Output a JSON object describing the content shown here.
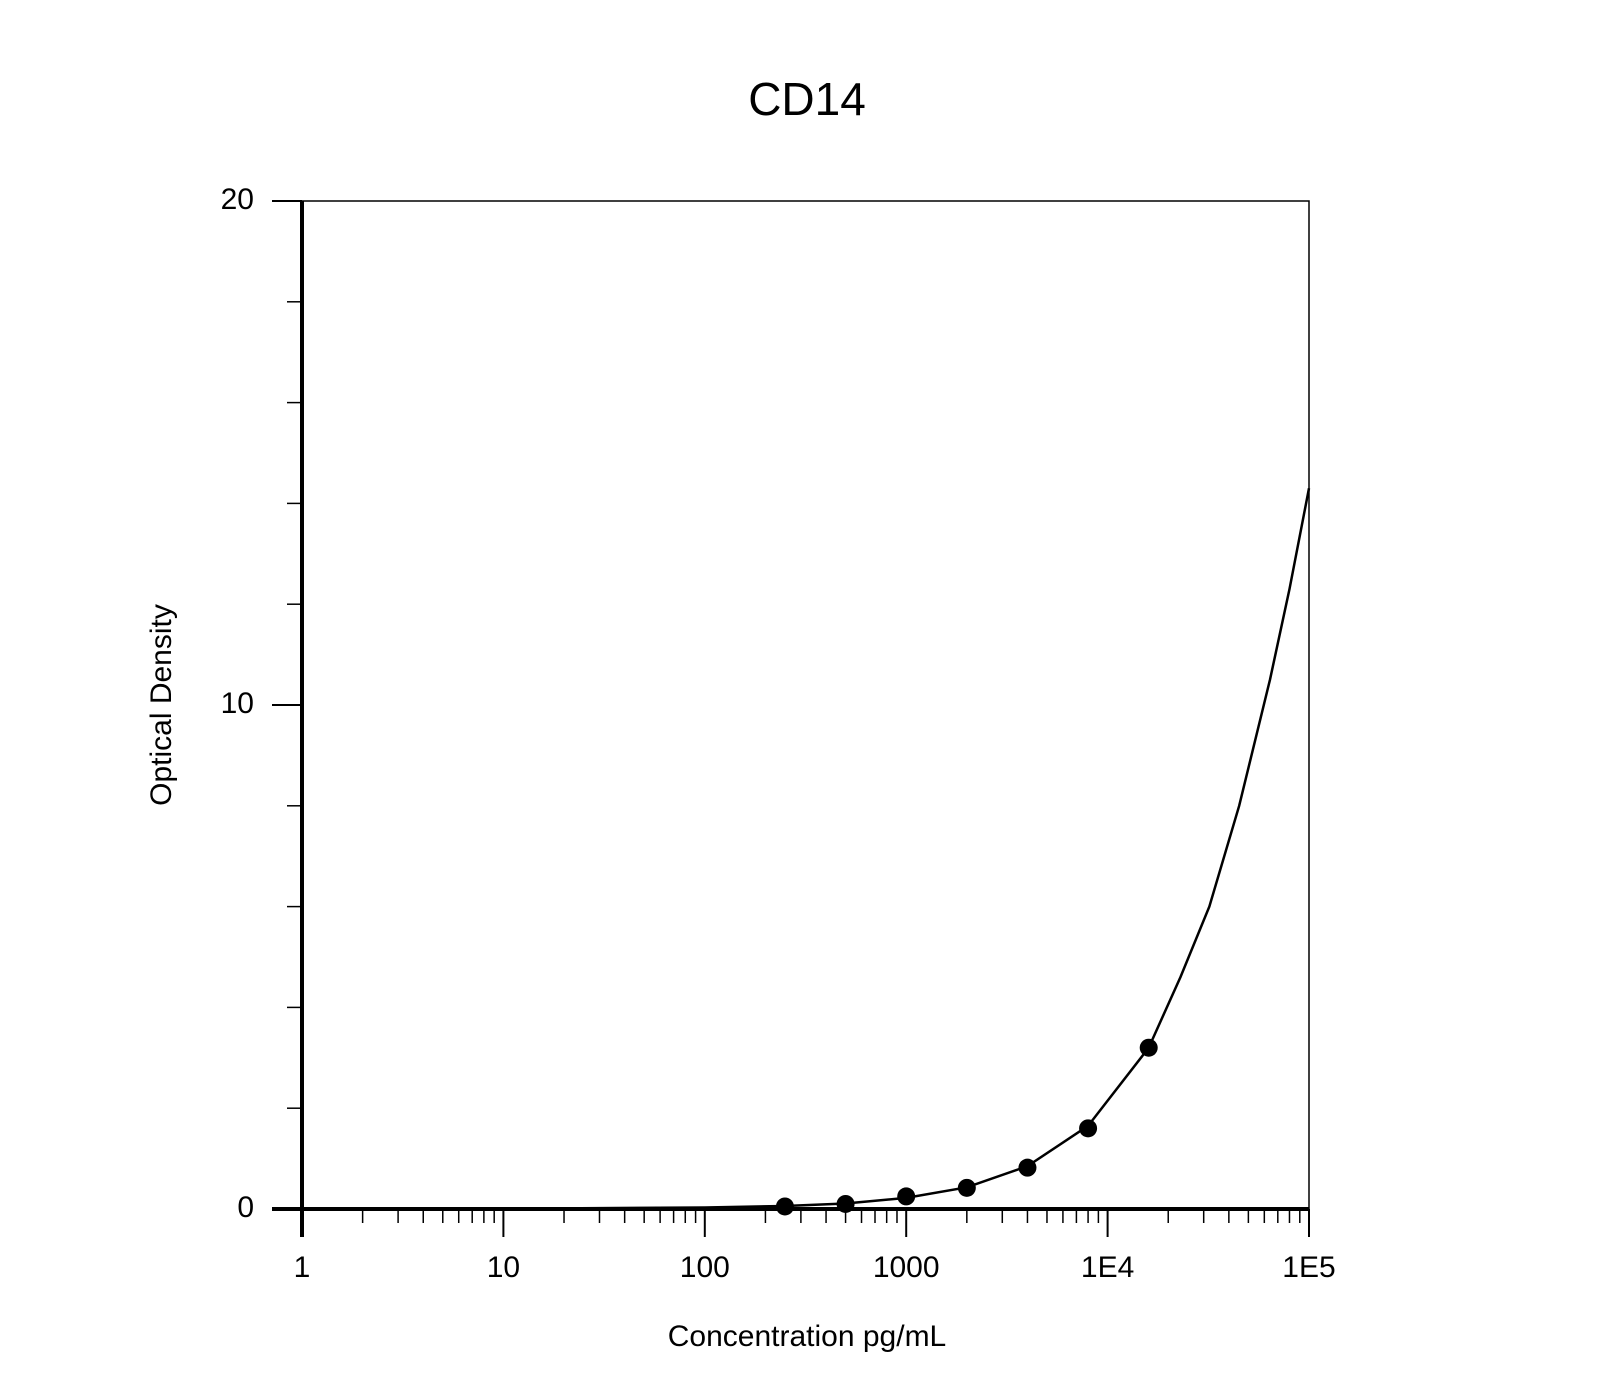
{
  "chart_data": {
    "type": "scatter",
    "title": "CD14",
    "x_label": "Concentration pg/mL",
    "y_label": "Optical Density",
    "x_scale": "log",
    "xlim": [
      1,
      100000
    ],
    "xticks": [
      1,
      10,
      100,
      1000,
      {
        "value": 10000,
        "label": "1E4"
      },
      {
        "value": 100000,
        "label": "1E5"
      }
    ],
    "ylim": [
      0,
      20
    ],
    "yticks": [
      0,
      10,
      20
    ],
    "grid": false,
    "series": [
      {
        "color": "#000000",
        "mode": "markers",
        "x": [
          250,
          500,
          1000,
          2000,
          4000,
          8000,
          16000
        ],
        "values": [
          0.05,
          0.1,
          0.25,
          0.42,
          0.82,
          1.6,
          3.2
        ]
      },
      {
        "color": "#000000",
        "mode": "line",
        "x": [
          1,
          10,
          100,
          250,
          500,
          1000,
          2000,
          4000,
          8000,
          16000,
          23000,
          32000,
          45000,
          64000,
          80000,
          100000
        ],
        "values": [
          0,
          0.005,
          0.03,
          0.06,
          0.11,
          0.22,
          0.43,
          0.85,
          1.65,
          3.2,
          4.6,
          6.0,
          8.0,
          10.5,
          12.3,
          14.3
        ]
      }
    ]
  }
}
